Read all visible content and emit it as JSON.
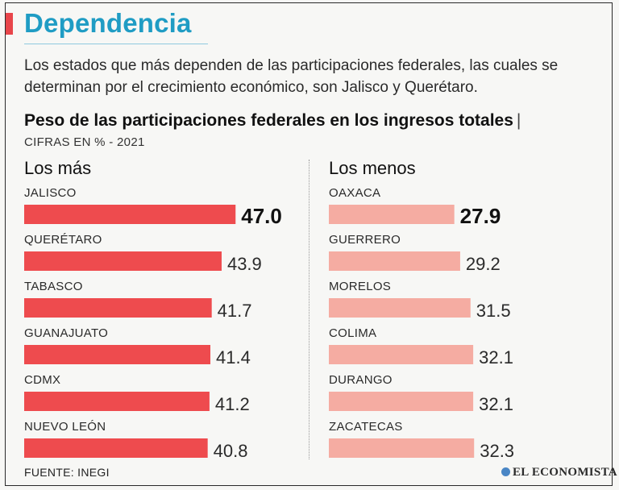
{
  "header": {
    "title": "Dependencia",
    "subtitle": "Los estados que más dependen de las participaciones federales, las cuales se determinan por el crecimiento económico, son Jalisco y Querétaro."
  },
  "chart_data": {
    "type": "bar",
    "orientation": "horizontal",
    "title": "Peso de las participaciones federales en los ingresos totales",
    "title_separator": "|",
    "unit_label": "CIFRAS EN % - 2021",
    "groups": [
      {
        "name": "Los más",
        "color": "#ee4b4e",
        "categories": [
          "JALISCO",
          "QUERÉTARO",
          "TABASCO",
          "GUANAJUATO",
          "CDMX",
          "NUEVO LEÓN"
        ],
        "values": [
          47.0,
          43.9,
          41.7,
          41.4,
          41.2,
          40.8
        ]
      },
      {
        "name": "Los menos",
        "color": "#f5aca2",
        "categories": [
          "OAXACA",
          "GUERRERO",
          "MORELOS",
          "COLIMA",
          "DURANGO",
          "ZACATECAS"
        ],
        "values": [
          27.9,
          29.2,
          31.5,
          32.1,
          32.1,
          32.3
        ]
      }
    ]
  },
  "footer": {
    "source": "FUENTE: INEGI",
    "brand": "EL ECONOMISTA"
  }
}
